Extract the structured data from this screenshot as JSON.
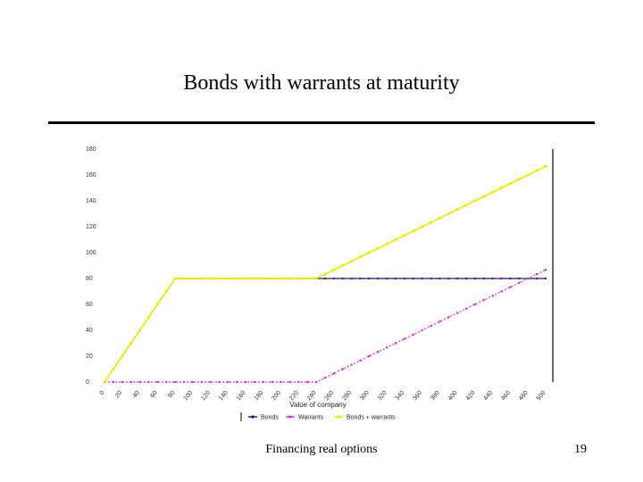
{
  "slide": {
    "title": "Bonds with warrants at maturity",
    "footer": "Financing real options",
    "page_number": "19"
  },
  "chart_data": {
    "type": "line",
    "title": "",
    "xlabel": "Value of company",
    "ylabel": "",
    "x": [
      0,
      20,
      40,
      60,
      80,
      100,
      120,
      140,
      160,
      180,
      200,
      220,
      240,
      260,
      280,
      300,
      320,
      340,
      360,
      380,
      400,
      420,
      440,
      460,
      480,
      500
    ],
    "x_tick_labels": [
      "0",
      "20",
      "40",
      "60",
      "80",
      "100",
      "120",
      "140",
      "160",
      "180",
      "200",
      "220",
      "240",
      "260",
      "280",
      "300",
      "320",
      "340",
      "360",
      "380",
      "400",
      "420",
      "440",
      "460",
      "480",
      "500"
    ],
    "xlim": [
      0,
      500
    ],
    "ylim": [
      0,
      180
    ],
    "y_ticks": [
      0,
      20,
      40,
      60,
      80,
      100,
      120,
      140,
      160,
      180
    ],
    "y_tick_labels": [
      "0",
      "20",
      "40",
      "60",
      "80",
      "100",
      "120",
      "140",
      "160",
      "180"
    ],
    "grid": false,
    "legend_position": "bottom",
    "series": [
      {
        "name": "Bonds",
        "color": "#1a1a66",
        "marker": "diamond",
        "points": [
          [
            0,
            0
          ],
          [
            80,
            80
          ],
          [
            500,
            80
          ]
        ]
      },
      {
        "name": "Warrants",
        "color": "#cc33cc",
        "marker": "square",
        "points": [
          [
            0,
            0
          ],
          [
            240,
            0
          ],
          [
            500,
            86.7
          ]
        ]
      },
      {
        "name": "Bonds + warrants",
        "color": "#e8e800",
        "marker": "square",
        "points": [
          [
            0,
            0
          ],
          [
            80,
            80
          ],
          [
            240,
            80
          ],
          [
            500,
            166.7
          ]
        ]
      }
    ]
  }
}
